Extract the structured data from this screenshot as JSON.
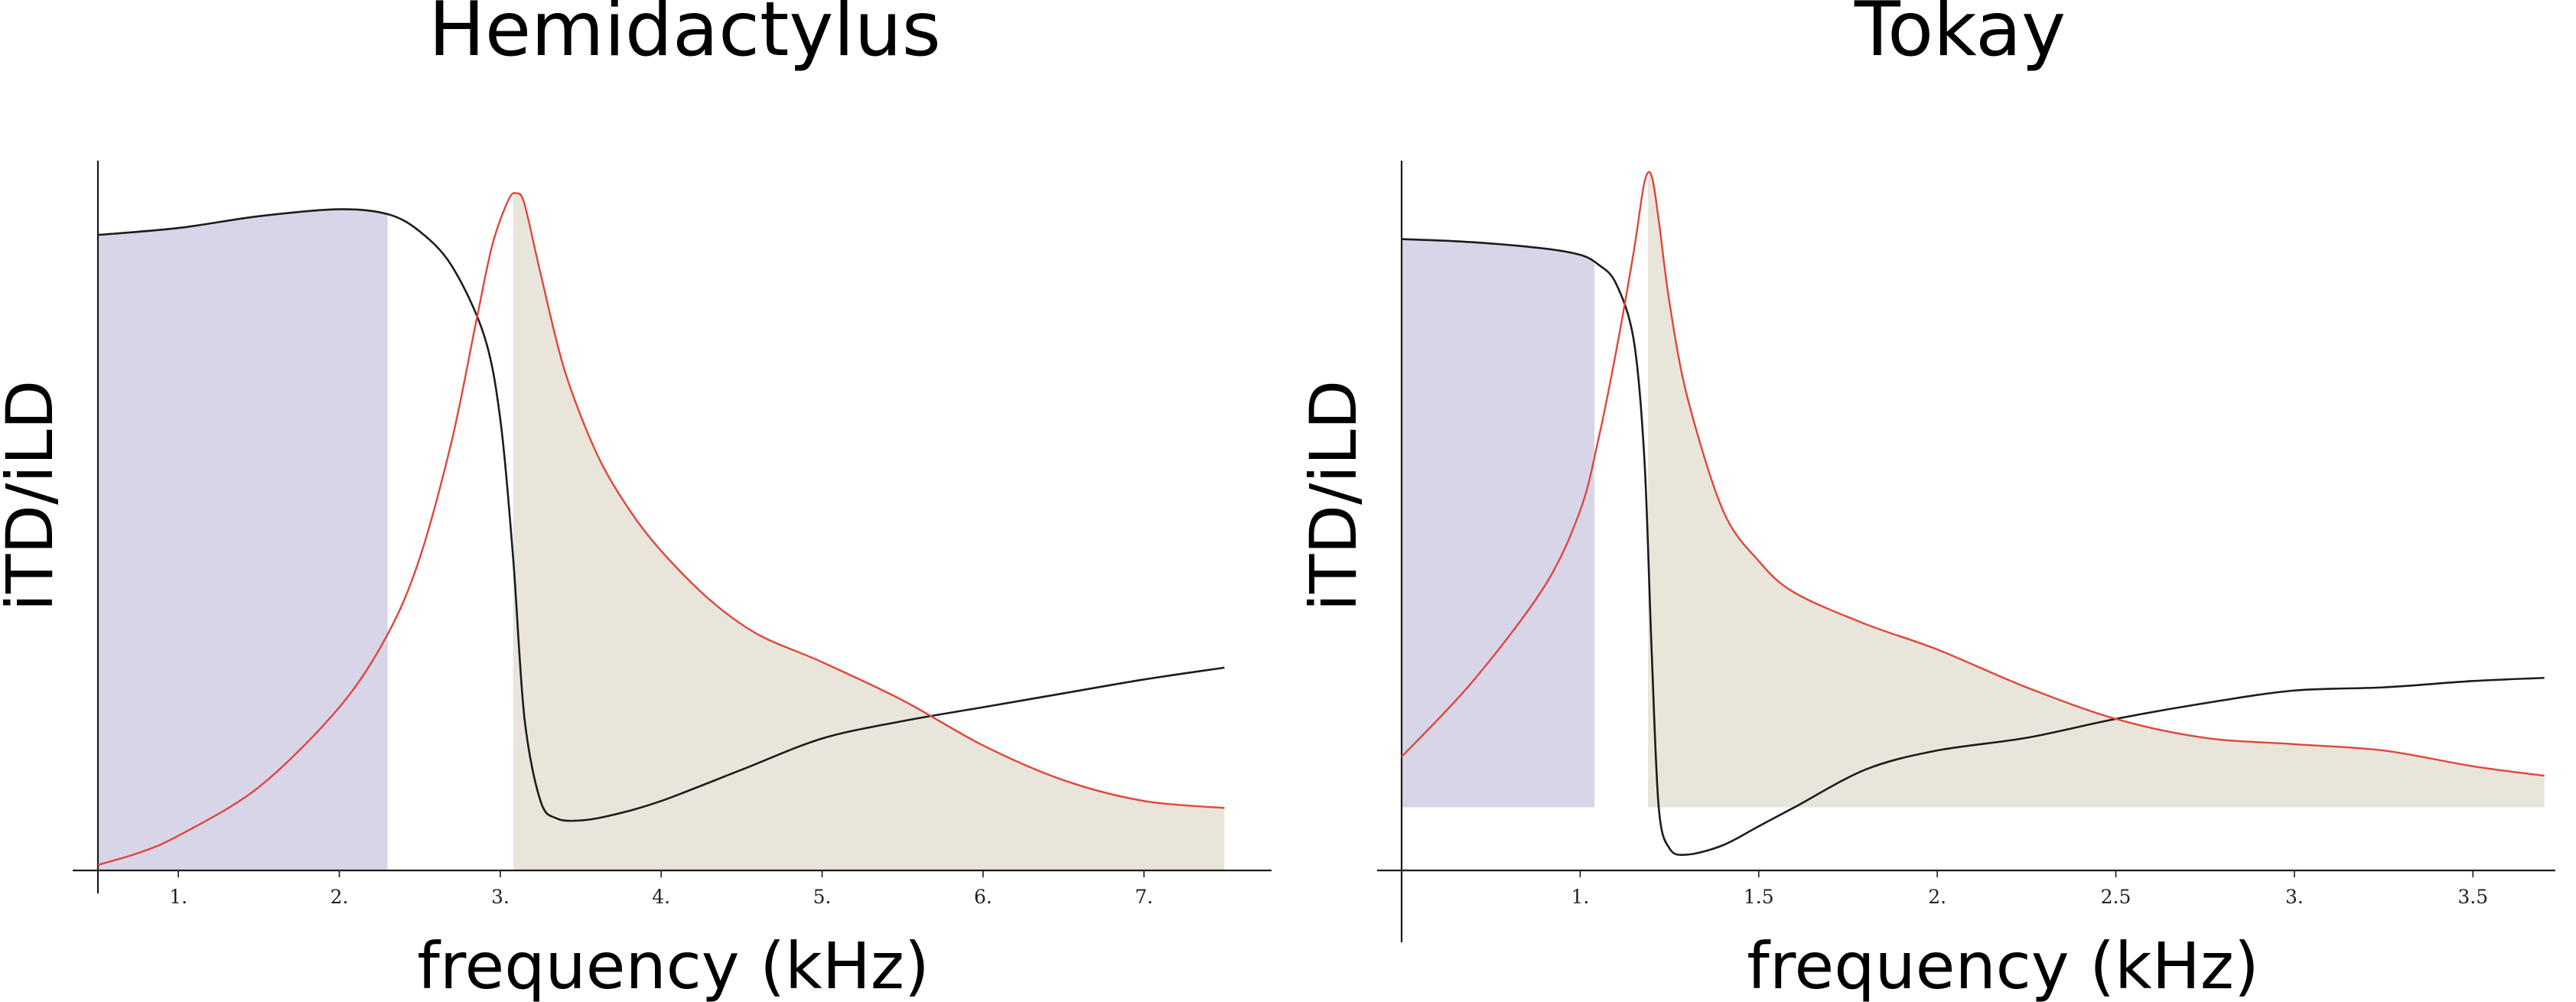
{
  "colors": {
    "itd_line": "#1c1c1c",
    "ild_line": "#e0463c",
    "itd_fill": "#d8d5e8",
    "ild_fill": "#e9e5da"
  },
  "chart_data": [
    {
      "type": "line",
      "title": "Hemidactylus",
      "xlabel": "frequency (kHz)",
      "ylabel": "iTD/iLD",
      "xlim": [
        0.5,
        7.65
      ],
      "ylim": [
        0,
        1
      ],
      "y_ticks_shown": false,
      "x_ticks": [
        1,
        2,
        3,
        4,
        5,
        6,
        7
      ],
      "x_tick_labels": [
        "1.",
        "2.",
        "3.",
        "4.",
        "5.",
        "6.",
        "7."
      ],
      "series": [
        {
          "key": "itd",
          "x": [
            0.5,
            1.0,
            1.5,
            2.0,
            2.3,
            2.5,
            2.7,
            2.9,
            3.0,
            3.08,
            3.15,
            3.25,
            3.35,
            3.5,
            3.7,
            4.0,
            4.5,
            5.0,
            5.5,
            6.0,
            6.5,
            7.0,
            7.5
          ],
          "y": [
            0.915,
            0.925,
            0.942,
            0.952,
            0.945,
            0.92,
            0.87,
            0.77,
            0.65,
            0.45,
            0.22,
            0.1,
            0.075,
            0.072,
            0.08,
            0.1,
            0.145,
            0.19,
            0.215,
            0.235,
            0.255,
            0.275,
            0.292
          ]
        },
        {
          "key": "ild",
          "x": [
            0.5,
            0.75,
            1.0,
            1.5,
            2.0,
            2.3,
            2.5,
            2.7,
            2.85,
            2.95,
            3.05,
            3.1,
            3.15,
            3.25,
            3.4,
            3.6,
            3.8,
            4.0,
            4.3,
            4.6,
            5.0,
            5.5,
            6.0,
            6.5,
            7.0,
            7.5
          ],
          "y": [
            0.008,
            0.025,
            0.05,
            0.12,
            0.235,
            0.34,
            0.45,
            0.62,
            0.79,
            0.9,
            0.965,
            0.975,
            0.96,
            0.86,
            0.72,
            0.6,
            0.52,
            0.46,
            0.39,
            0.34,
            0.3,
            0.245,
            0.18,
            0.13,
            0.1,
            0.09
          ]
        }
      ],
      "shaded_regions": [
        {
          "key": "itd-region",
          "under_series": "itd",
          "x_range": [
            0.5,
            2.3
          ]
        },
        {
          "key": "ild-region",
          "under_series": "ild",
          "x_range": [
            3.08,
            7.5
          ]
        }
      ]
    },
    {
      "type": "line",
      "title": "Tokay",
      "xlabel": "frequency (kHz)",
      "ylabel": "iTD/iLD",
      "xlim": [
        0.5,
        3.72
      ],
      "ylim": [
        -0.1,
        1
      ],
      "y_ticks_shown": false,
      "x_ticks": [
        1,
        1.5,
        2,
        2.5,
        3,
        3.5
      ],
      "x_tick_labels": [
        "1.",
        "1.5",
        "2.",
        "2.5",
        "3.",
        "3.5"
      ],
      "series": [
        {
          "key": "itd",
          "x": [
            0.5,
            0.7,
            0.9,
            1.0,
            1.05,
            1.1,
            1.15,
            1.18,
            1.2,
            1.22,
            1.25,
            1.3,
            1.4,
            1.5,
            1.6,
            1.8,
            2.0,
            2.25,
            2.5,
            2.75,
            3.0,
            3.25,
            3.5,
            3.7
          ],
          "y": [
            0.9,
            0.895,
            0.885,
            0.875,
            0.86,
            0.83,
            0.74,
            0.55,
            0.25,
            0.0,
            -0.065,
            -0.075,
            -0.06,
            -0.03,
            0.0,
            0.06,
            0.09,
            0.11,
            0.14,
            0.165,
            0.185,
            0.19,
            0.2,
            0.205
          ]
        },
        {
          "key": "ild",
          "x": [
            0.5,
            0.7,
            0.9,
            1.0,
            1.05,
            1.1,
            1.15,
            1.18,
            1.2,
            1.22,
            1.25,
            1.3,
            1.4,
            1.5,
            1.6,
            1.8,
            2.0,
            2.25,
            2.5,
            2.75,
            3.0,
            3.25,
            3.5,
            3.7
          ],
          "y": [
            0.08,
            0.2,
            0.35,
            0.47,
            0.58,
            0.72,
            0.88,
            0.99,
            1.0,
            0.93,
            0.8,
            0.65,
            0.47,
            0.39,
            0.34,
            0.29,
            0.25,
            0.19,
            0.14,
            0.11,
            0.1,
            0.09,
            0.065,
            0.05
          ]
        }
      ],
      "shaded_regions": [
        {
          "key": "itd-region",
          "under_series": "itd",
          "x_range": [
            0.5,
            1.04
          ]
        },
        {
          "key": "ild-region",
          "under_series": "ild",
          "x_range": [
            1.19,
            3.7
          ]
        }
      ]
    }
  ]
}
